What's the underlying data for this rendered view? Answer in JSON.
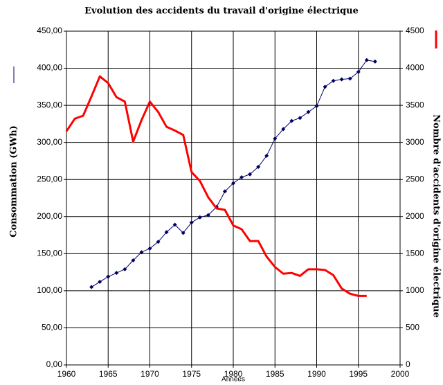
{
  "chart_data": {
    "type": "line",
    "title": "Evolution des accidents du travail d'origine électrique",
    "xlabel": "Années",
    "ylabel": "Consommation (GWh)",
    "y2label": "Nombre d'accidents d'origine électrique",
    "x": [
      1960,
      1961,
      1962,
      1963,
      1964,
      1965,
      1966,
      1967,
      1968,
      1969,
      1970,
      1971,
      1972,
      1973,
      1974,
      1975,
      1976,
      1977,
      1978,
      1979,
      1980,
      1981,
      1982,
      1983,
      1984,
      1985,
      1986,
      1987,
      1988,
      1989,
      1990,
      1991,
      1992,
      1993,
      1994,
      1995,
      1996,
      1997
    ],
    "series": [
      {
        "color": "#000066",
        "axis": "y",
        "marker": "diamond",
        "values": [
          null,
          null,
          null,
          105,
          112,
          119,
          124,
          129,
          141,
          152,
          157,
          166,
          179,
          189,
          178,
          192,
          199,
          202,
          213,
          234,
          245,
          253,
          257,
          267,
          282,
          305,
          318,
          329,
          333,
          341,
          349,
          375,
          383,
          385,
          386,
          395,
          411,
          409
        ]
      },
      {
        "color": "#ff0000",
        "axis": "y2",
        "values": [
          3150,
          3320,
          3360,
          3620,
          3890,
          3800,
          3610,
          3550,
          3010,
          3300,
          3550,
          3410,
          3210,
          3160,
          3100,
          2600,
          2480,
          2260,
          2110,
          2090,
          1880,
          1830,
          1670,
          1670,
          1460,
          1320,
          1230,
          1240,
          1200,
          1290,
          1290,
          1280,
          1210,
          1030,
          960,
          930,
          930,
          null
        ]
      }
    ],
    "xlim": [
      1960,
      2000
    ],
    "xticks": [
      1960,
      1965,
      1970,
      1975,
      1980,
      1985,
      1990,
      1995,
      2000
    ],
    "ylim": [
      0,
      450
    ],
    "yticks": [
      {
        "value": 0,
        "label": "0,00"
      },
      {
        "value": 50,
        "label": "50,00"
      },
      {
        "value": 100,
        "label": "100,00"
      },
      {
        "value": 150,
        "label": "150,00"
      },
      {
        "value": 200,
        "label": "200,00"
      },
      {
        "value": 250,
        "label": "250,00"
      },
      {
        "value": 300,
        "label": "300,00"
      },
      {
        "value": 350,
        "label": "350,00"
      },
      {
        "value": 400,
        "label": "400,00"
      },
      {
        "value": 450,
        "label": "450,00"
      }
    ],
    "y2lim": [
      0,
      4500
    ],
    "y2ticks": [
      0,
      500,
      1000,
      1500,
      2000,
      2500,
      3000,
      3500,
      4000,
      4500
    ],
    "grid": true
  }
}
